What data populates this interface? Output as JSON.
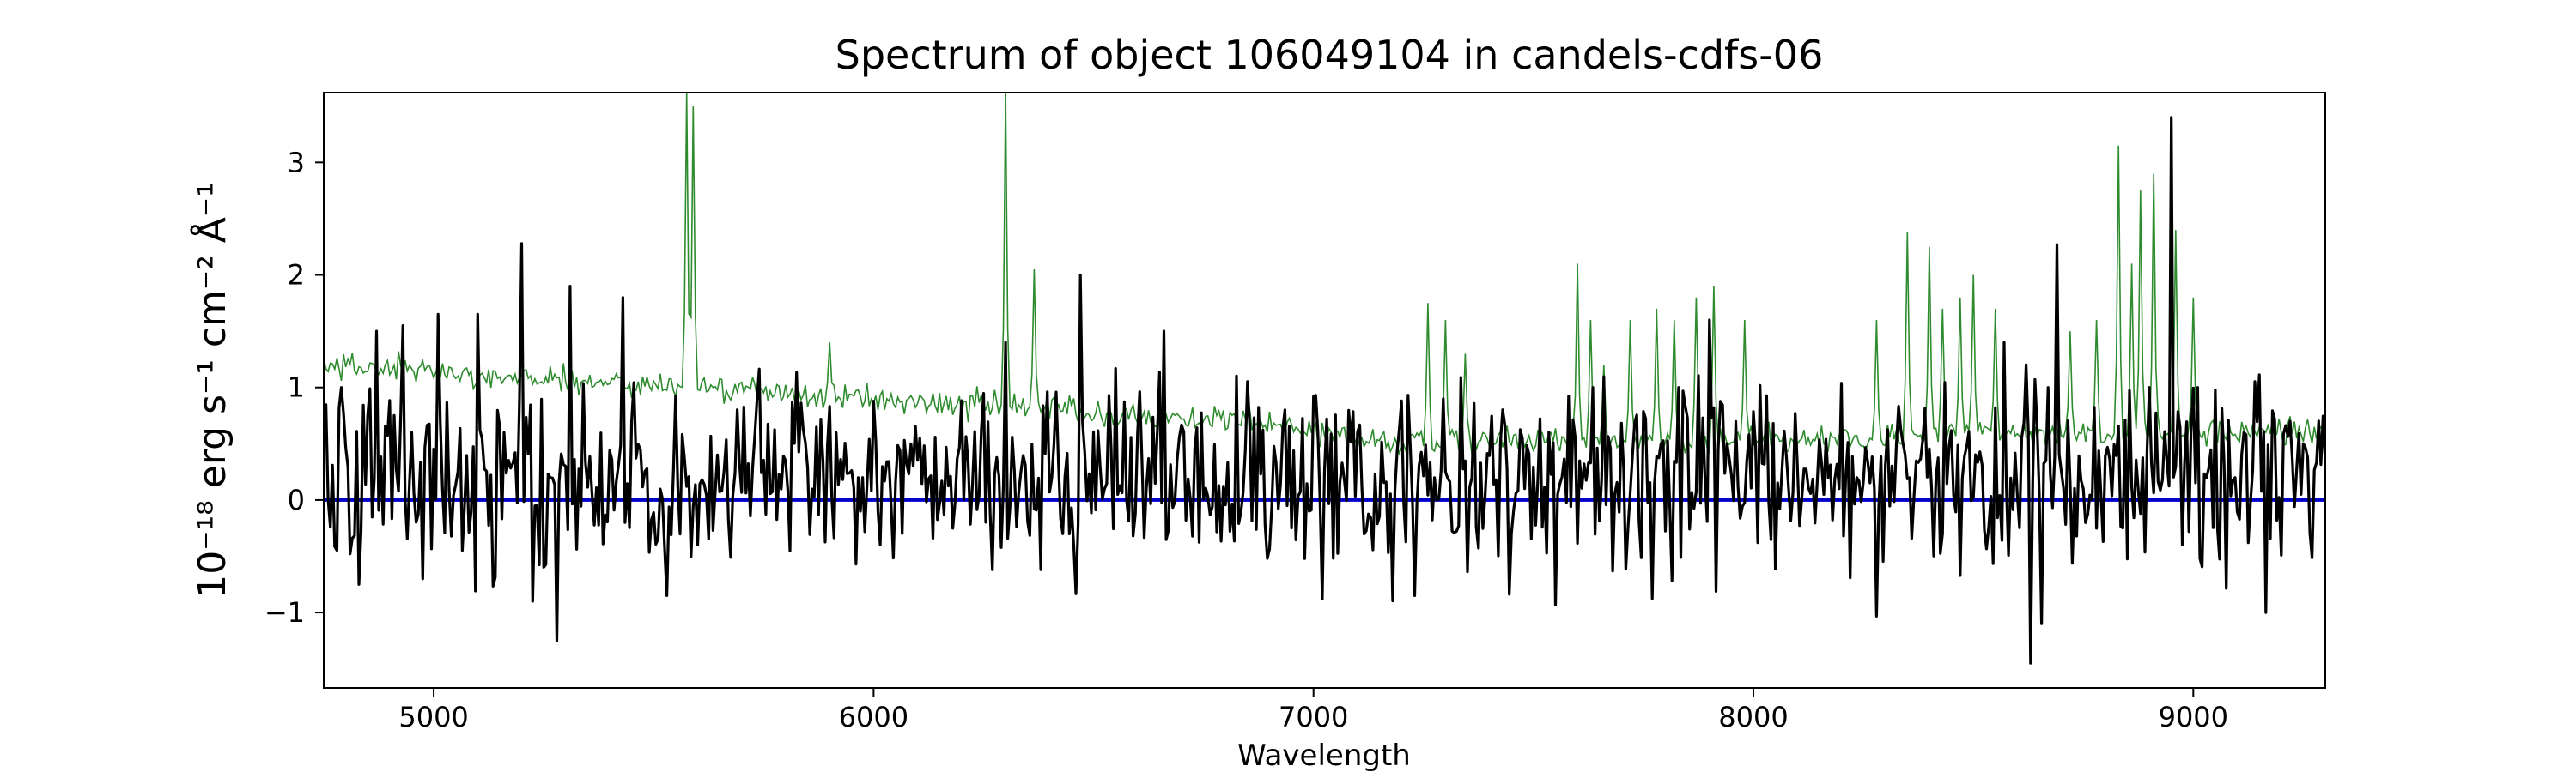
{
  "chart_data": {
    "type": "line",
    "title": "Spectrum of object 106049104 in candels-cdfs-06",
    "xlabel": "Wavelength",
    "ylabel": "10⁻¹⁸ erg s⁻¹ cm⁻² Å⁻¹",
    "xlim": [
      4750,
      9300
    ],
    "ylim": [
      -1.67,
      3.62
    ],
    "x_ticks": [
      5000,
      6000,
      7000,
      8000,
      9000
    ],
    "y_ticks": [
      -1,
      0,
      1,
      2,
      3
    ],
    "y_tick_labels": [
      "−1",
      "0",
      "1",
      "2",
      "3"
    ],
    "grid": false,
    "legend": "none",
    "x_step": 5,
    "series": [
      {
        "role": "flux",
        "color": "#000000",
        "peaks": [
          [
            4788,
            1.0
          ],
          [
            4830,
            -0.75
          ],
          [
            4870,
            1.5
          ],
          [
            4930,
            1.55
          ],
          [
            4975,
            -0.7
          ],
          [
            5010,
            1.65
          ],
          [
            5100,
            1.65
          ],
          [
            5200,
            2.28
          ],
          [
            5225,
            -0.9
          ],
          [
            5280,
            -1.25
          ],
          [
            5310,
            1.9
          ],
          [
            5430,
            1.8
          ],
          [
            5530,
            -0.85
          ],
          [
            5600,
            -0.4
          ],
          [
            6270,
            -0.62
          ],
          [
            6300,
            1.4
          ],
          [
            6470,
            2.0
          ],
          [
            6660,
            1.5
          ],
          [
            7230,
            -0.85
          ],
          [
            7900,
            1.6
          ],
          [
            8570,
            1.4
          ],
          [
            8630,
            -1.45
          ],
          [
            8655,
            -1.1
          ],
          [
            8670,
            1.0
          ],
          [
            8690,
            2.27
          ],
          [
            8900,
            1.0
          ],
          [
            8950,
            3.4
          ],
          [
            9010,
            1.0
          ],
          [
            9165,
            -1.0
          ],
          [
            9220,
            0.7
          ]
        ]
      },
      {
        "role": "error",
        "color": "#2e8b2e",
        "peaks": [
          [
            5575,
            3.62
          ],
          [
            5590,
            3.5
          ],
          [
            6300,
            3.62
          ],
          [
            6365,
            2.05
          ],
          [
            5900,
            1.4
          ],
          [
            7260,
            1.75
          ],
          [
            7300,
            1.6
          ],
          [
            7345,
            1.3
          ],
          [
            7600,
            2.1
          ],
          [
            7630,
            1.6
          ],
          [
            7660,
            1.2
          ],
          [
            7720,
            1.6
          ],
          [
            7780,
            1.7
          ],
          [
            7820,
            1.6
          ],
          [
            7870,
            1.8
          ],
          [
            7910,
            1.9
          ],
          [
            7980,
            1.6
          ],
          [
            8280,
            1.6
          ],
          [
            8350,
            2.38
          ],
          [
            8400,
            2.25
          ],
          [
            8430,
            1.7
          ],
          [
            8470,
            1.8
          ],
          [
            8500,
            2.0
          ],
          [
            8550,
            1.7
          ],
          [
            8720,
            1.5
          ],
          [
            8780,
            1.6
          ],
          [
            8830,
            3.15
          ],
          [
            8860,
            2.1
          ],
          [
            8880,
            2.75
          ],
          [
            8910,
            2.9
          ],
          [
            8960,
            2.4
          ],
          [
            9000,
            1.8
          ]
        ]
      },
      {
        "role": "model",
        "color": "#0000c8",
        "values": [
          0.0,
          0.0
        ]
      }
    ]
  }
}
